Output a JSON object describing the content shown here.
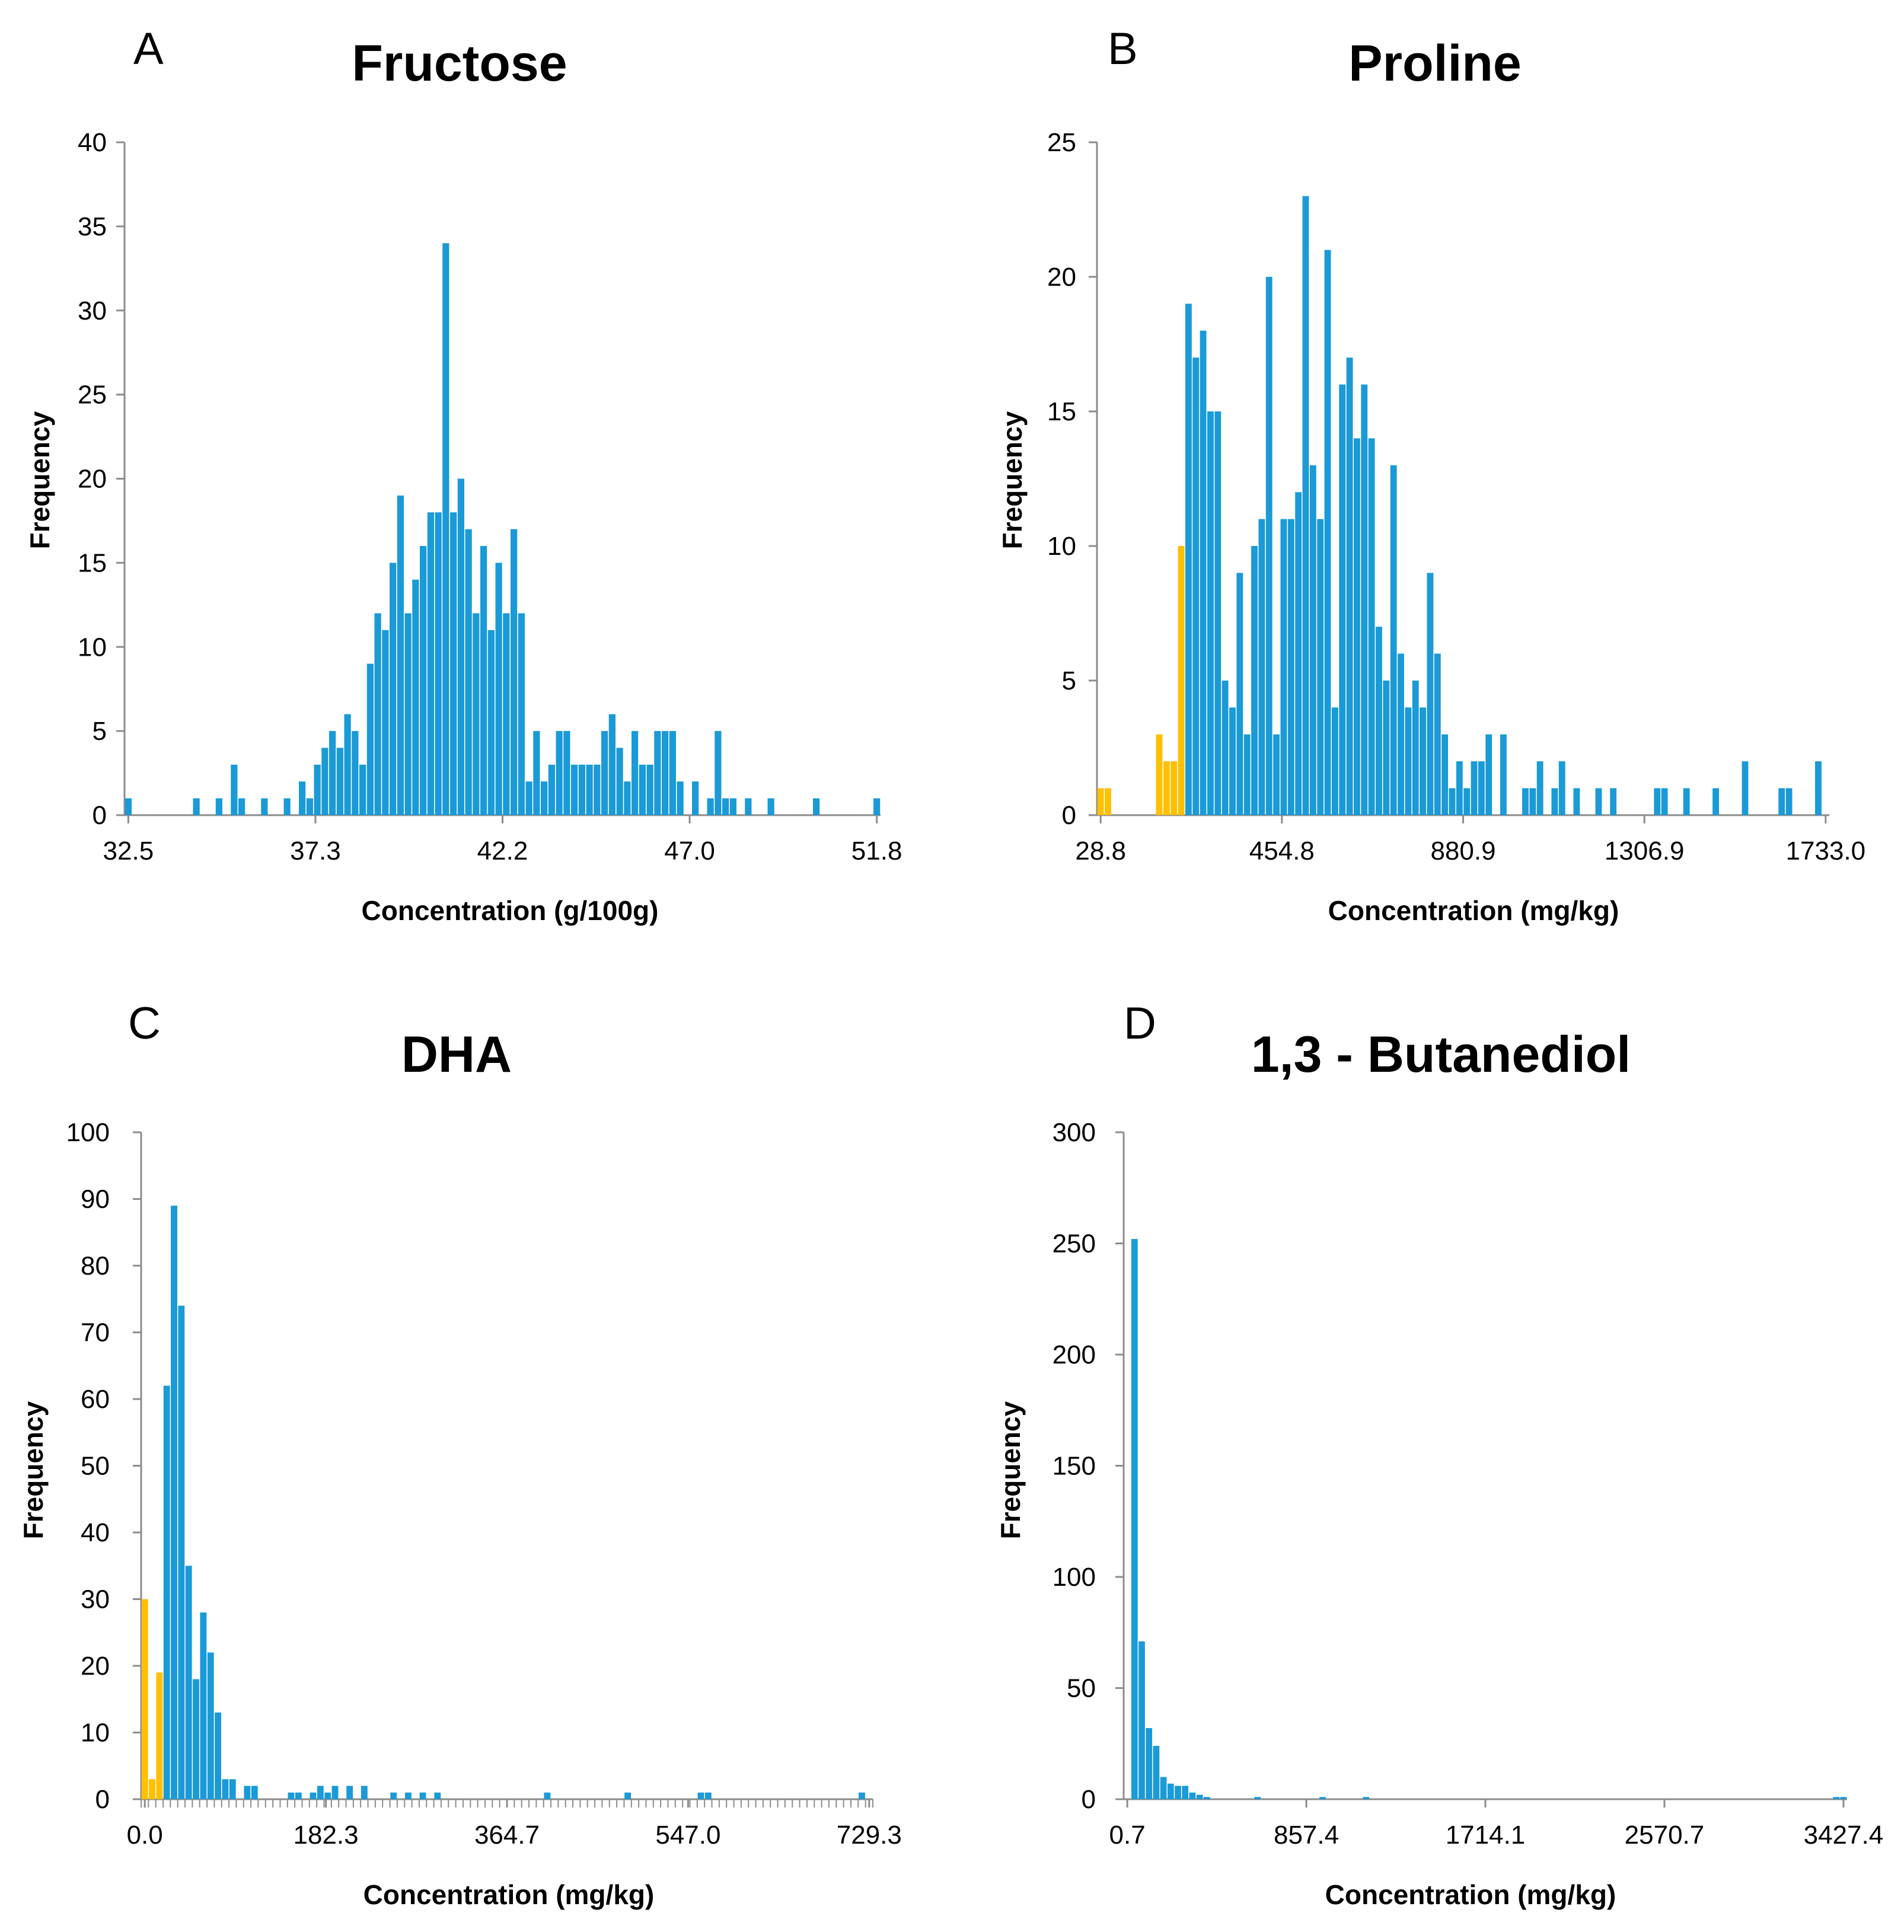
{
  "colors": {
    "main": "#1a9ad6",
    "highlight": "#ffc000",
    "axis": "#8c8c8c"
  },
  "chart_data": [
    {
      "type": "bar",
      "panel": "A",
      "title": "Fructose",
      "xlabel": "Concentration (g/100g)",
      "ylabel": "Frequency",
      "x_range": [
        32.5,
        51.8
      ],
      "xticks": [
        "32.5",
        "37.3",
        "42.2",
        "47.0",
        "51.8"
      ],
      "ylim": [
        0,
        40
      ],
      "yticks": [
        "0",
        "5",
        "10",
        "15",
        "20",
        "25",
        "30",
        "35",
        "40"
      ],
      "grid": false,
      "bins": 100,
      "series": [
        {
          "name": "main",
          "color": "blue",
          "bins": [
            0,
            9,
            12,
            14,
            15,
            18,
            21,
            23,
            24,
            25,
            26,
            27,
            28,
            29,
            30,
            31,
            32,
            33,
            34,
            35,
            36,
            37,
            38,
            39,
            40,
            41,
            42,
            43,
            44,
            45,
            46,
            47,
            48,
            49,
            50,
            51,
            52,
            53,
            54,
            55,
            56,
            57,
            58,
            59,
            60,
            61,
            62,
            63,
            64,
            65,
            66,
            67,
            68,
            69,
            70,
            71,
            72,
            73,
            75,
            77,
            78,
            79,
            80,
            82,
            85,
            91,
            99
          ],
          "values": [
            1,
            1,
            1,
            3,
            1,
            1,
            1,
            2,
            1,
            3,
            4,
            5,
            4,
            6,
            5,
            3,
            9,
            12,
            11,
            15,
            19,
            12,
            14,
            16,
            18,
            18,
            34,
            18,
            20,
            17,
            12,
            16,
            11,
            15,
            12,
            17,
            12,
            2,
            5,
            2,
            3,
            5,
            5,
            3,
            3,
            3,
            3,
            5,
            6,
            4,
            2,
            5,
            3,
            3,
            5,
            5,
            5,
            2,
            2,
            1,
            5,
            1,
            1,
            1,
            1,
            1,
            1
          ]
        }
      ]
    },
    {
      "type": "bar",
      "panel": "B",
      "title": "Proline",
      "xlabel": "Concentration (mg/kg)",
      "ylabel": "Frequency",
      "x_range": [
        28.8,
        1733.0
      ],
      "xticks": [
        "28.8",
        "454.8",
        "880.9",
        "1306.9",
        "1733.0"
      ],
      "ylim": [
        0,
        25
      ],
      "yticks": [
        "0",
        "5",
        "10",
        "15",
        "20",
        "25"
      ],
      "grid": false,
      "bins": 100,
      "series": [
        {
          "name": "highlight",
          "color": "yellow",
          "bins": [
            0,
            1,
            8,
            9,
            10,
            11
          ],
          "values": [
            1,
            1,
            3,
            2,
            2,
            10
          ]
        },
        {
          "name": "main",
          "color": "blue",
          "bins": [
            12,
            13,
            14,
            15,
            16,
            17,
            18,
            19,
            20,
            21,
            22,
            23,
            24,
            25,
            26,
            27,
            28,
            29,
            30,
            31,
            32,
            33,
            34,
            35,
            36,
            37,
            38,
            39,
            40,
            41,
            42,
            43,
            44,
            45,
            46,
            47,
            48,
            49,
            50,
            51,
            52,
            53,
            55,
            58,
            59,
            60,
            62,
            63,
            65,
            68,
            70,
            76,
            77,
            80,
            84,
            88,
            93,
            94,
            98
          ],
          "values": [
            19,
            17,
            18,
            15,
            15,
            5,
            4,
            9,
            3,
            10,
            11,
            20,
            3,
            11,
            11,
            12,
            23,
            13,
            11,
            21,
            4,
            16,
            17,
            14,
            16,
            14,
            7,
            5,
            13,
            6,
            4,
            5,
            4,
            9,
            6,
            3,
            1,
            2,
            1,
            2,
            2,
            3,
            3,
            1,
            1,
            2,
            1,
            2,
            1,
            1,
            1,
            1,
            1,
            1,
            1,
            2,
            1,
            1,
            2
          ]
        }
      ]
    },
    {
      "type": "bar",
      "panel": "C",
      "title": "DHA",
      "xlabel": "Concentration (mg/kg)",
      "ylabel": "Frequency",
      "x_range": [
        0.0,
        729.3
      ],
      "xticks": [
        "0.0",
        "182.3",
        "364.7",
        "547.0",
        "729.3"
      ],
      "ylim": [
        0,
        100
      ],
      "yticks": [
        "0",
        "10",
        "20",
        "30",
        "40",
        "50",
        "60",
        "70",
        "80",
        "90",
        "100"
      ],
      "grid": false,
      "bins": 100,
      "series": [
        {
          "name": "highlight",
          "color": "yellow",
          "bins": [
            0,
            1,
            2
          ],
          "values": [
            30,
            3,
            19
          ]
        },
        {
          "name": "main",
          "color": "blue",
          "bins": [
            3,
            4,
            5,
            6,
            7,
            8,
            9,
            10,
            11,
            12,
            14,
            15,
            20,
            21,
            23,
            24,
            25,
            26,
            28,
            30,
            34,
            36,
            38,
            40,
            55,
            66,
            76,
            77,
            98
          ],
          "values": [
            62,
            89,
            74,
            35,
            18,
            28,
            22,
            13,
            3,
            3,
            2,
            2,
            1,
            1,
            1,
            2,
            1,
            2,
            2,
            2,
            1,
            1,
            1,
            1,
            1,
            1,
            1,
            1,
            1
          ]
        }
      ]
    },
    {
      "type": "bar",
      "panel": "D",
      "title": "1,3 - Butanediol",
      "xlabel": "Concentration (mg/kg)",
      "ylabel": "Frequency",
      "x_range": [
        0.7,
        3427.4
      ],
      "xticks": [
        "0.7",
        "857.4",
        "1714.1",
        "2570.7",
        "3427.4"
      ],
      "ylim": [
        0,
        300
      ],
      "yticks": [
        "0",
        "50",
        "100",
        "150",
        "200",
        "250",
        "300"
      ],
      "grid": false,
      "bins": 100,
      "series": [
        {
          "name": "main",
          "color": "blue",
          "bins": [
            1,
            2,
            3,
            4,
            5,
            6,
            7,
            8,
            9,
            10,
            11,
            18,
            27,
            33,
            98,
            99
          ],
          "values": [
            252,
            71,
            32,
            24,
            10,
            7,
            6,
            6,
            3,
            2,
            1,
            1,
            1,
            1,
            1,
            1
          ]
        }
      ]
    }
  ],
  "panels": [
    {
      "letter": "A",
      "title": "Fructose",
      "xlabel": "Concentration (g/100g)",
      "ylabel": "Frequency"
    },
    {
      "letter": "B",
      "title": "Proline",
      "xlabel": "Concentration (mg/kg)",
      "ylabel": "Frequency"
    },
    {
      "letter": "C",
      "title": "DHA",
      "xlabel": "Concentration (mg/kg)",
      "ylabel": "Frequency"
    },
    {
      "letter": "D",
      "title": "1,3 - Butanediol",
      "xlabel": "Concentration (mg/kg)",
      "ylabel": "Frequency"
    }
  ]
}
